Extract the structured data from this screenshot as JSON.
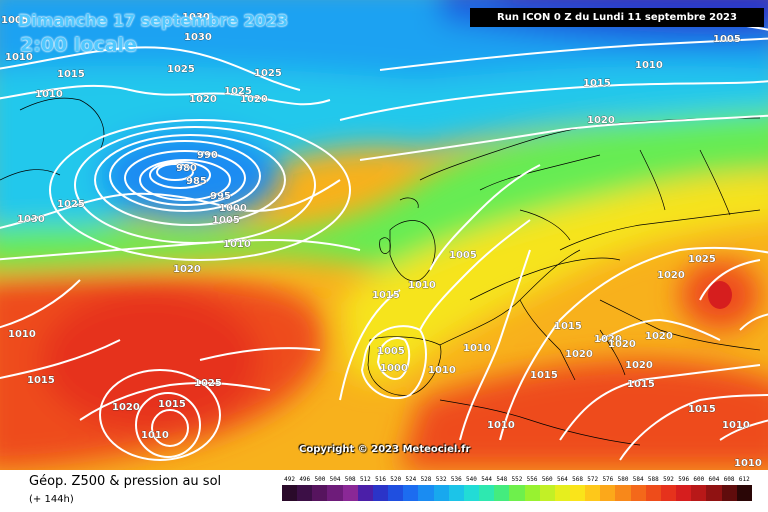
{
  "header": {
    "date_title": "Dimanche 17 septembre 2023",
    "time_label": "2:00 locale",
    "run_label": "Run ICON 0 Z du Lundi 11 septembre 2023"
  },
  "copyright": "Copyright © 2023 Meteociel.fr",
  "footer": {
    "title": "Géop. Z500 & pression au sol",
    "subtitle": "(+ 144h)"
  },
  "legend": {
    "values": [
      "492",
      "496",
      "500",
      "504",
      "508",
      "512",
      "516",
      "520",
      "524",
      "528",
      "532",
      "536",
      "540",
      "544",
      "548",
      "552",
      "556",
      "560",
      "564",
      "568",
      "572",
      "576",
      "580",
      "584",
      "588",
      "592",
      "596",
      "600",
      "604",
      "608",
      "612"
    ],
    "colors": [
      "#2a0a2a",
      "#3c0f46",
      "#56145e",
      "#6e1c7a",
      "#8a2896",
      "#4b1fa8",
      "#2b34c8",
      "#1f4fe0",
      "#1c6cf0",
      "#1a8cf2",
      "#18a8ee",
      "#1cc4e8",
      "#22dcd6",
      "#2ee8b0",
      "#44ec7e",
      "#6ef04c",
      "#98f230",
      "#c2f026",
      "#e6ee1e",
      "#fae41a",
      "#fec81a",
      "#fca81a",
      "#f8881a",
      "#f4681a",
      "#ee4c1a",
      "#e6321c",
      "#d61e1e",
      "#b81818",
      "#901212",
      "#600c0c",
      "#2a0606"
    ]
  },
  "isobars": [
    "1030",
    "1030",
    "1025",
    "1025",
    "1010",
    "1015",
    "1010",
    "1025",
    "1020",
    "1020",
    "990",
    "980",
    "985",
    "995",
    "1000",
    "1005",
    "1010",
    "1025",
    "1030",
    "1020",
    "1010",
    "1015",
    "1025",
    "1020",
    "1015",
    "1010",
    "1015",
    "1005",
    "1010",
    "1010",
    "1005",
    "1000",
    "1010",
    "1015",
    "1020",
    "1015",
    "1020",
    "1020",
    "1020",
    "1025",
    "1020",
    "1020",
    "1015",
    "1020",
    "1010",
    "1010",
    "1005",
    "1010",
    "1015",
    "1005",
    "1010",
    "1015"
  ]
}
